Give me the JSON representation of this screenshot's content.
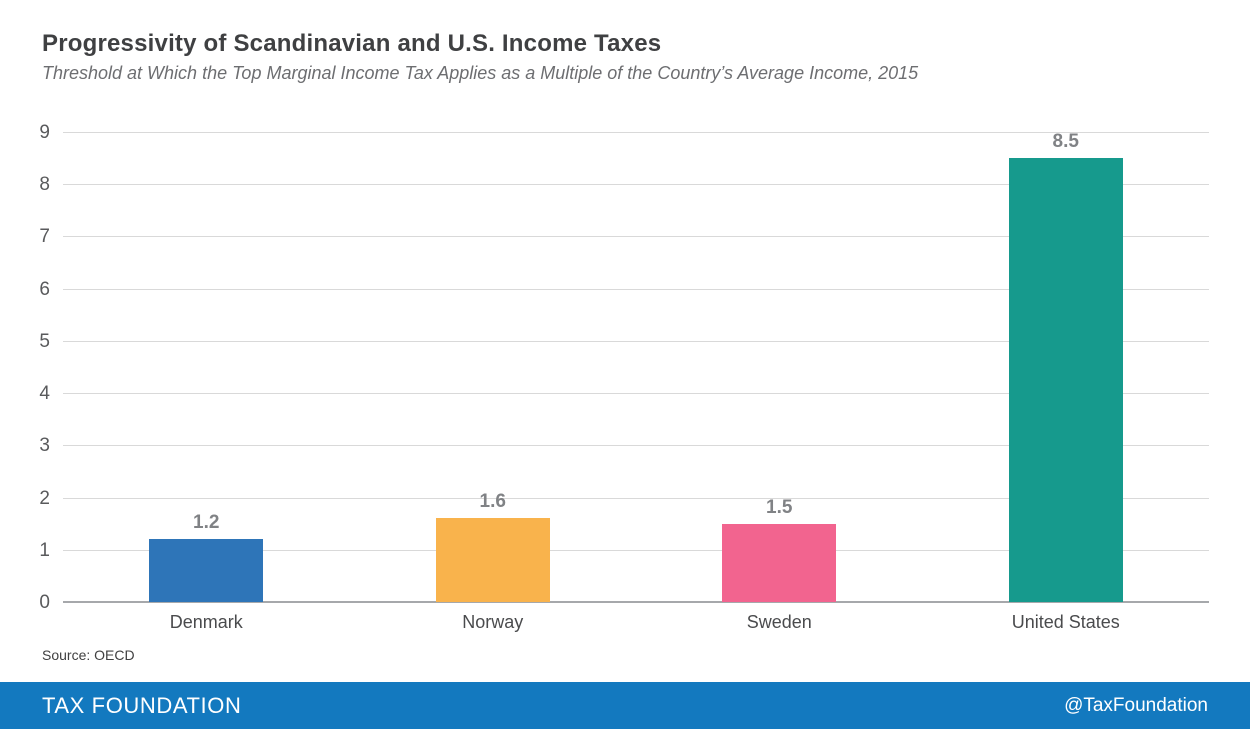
{
  "title": "Progressivity of Scandinavian and U.S. Income Taxes",
  "subtitle": "Threshold at Which the Top Marginal Income Tax Applies as a Multiple of the Country’s Average Income, 2015",
  "source_note": "Source: OECD",
  "footer": {
    "brand": "TAX FOUNDATION",
    "handle": "@TaxFoundation",
    "background": "#1379bf",
    "text_color": "#ffffff"
  },
  "colors": {
    "title_text": "#3f4042",
    "subtitle_text": "#6d6e71",
    "gridline": "#d9d9d9",
    "axis_baseline": "#a6a8ab",
    "ytick_text": "#595a5c",
    "value_label_text": "#808285",
    "category_text": "#4a4b4d"
  },
  "chart_data": {
    "type": "bar",
    "title": "Progressivity of Scandinavian and U.S. Income Taxes",
    "subtitle": "Threshold at Which the Top Marginal Income Tax Applies as a Multiple of the Country’s Average Income, 2015",
    "categories": [
      "Denmark",
      "Norway",
      "Sweden",
      "United States"
    ],
    "values": [
      1.2,
      1.6,
      1.5,
      8.5
    ],
    "data_labels": [
      "1.2",
      "1.6",
      "1.5",
      "8.5"
    ],
    "bar_colors": [
      "#2e75b8",
      "#f9b34c",
      "#f2648f",
      "#169a8d"
    ],
    "xlabel": "",
    "ylabel": "",
    "ylim": [
      0,
      9
    ],
    "yticks": [
      0,
      1,
      2,
      3,
      4,
      5,
      6,
      7,
      8,
      9
    ],
    "grid": true,
    "legend": false,
    "source": "OECD"
  }
}
